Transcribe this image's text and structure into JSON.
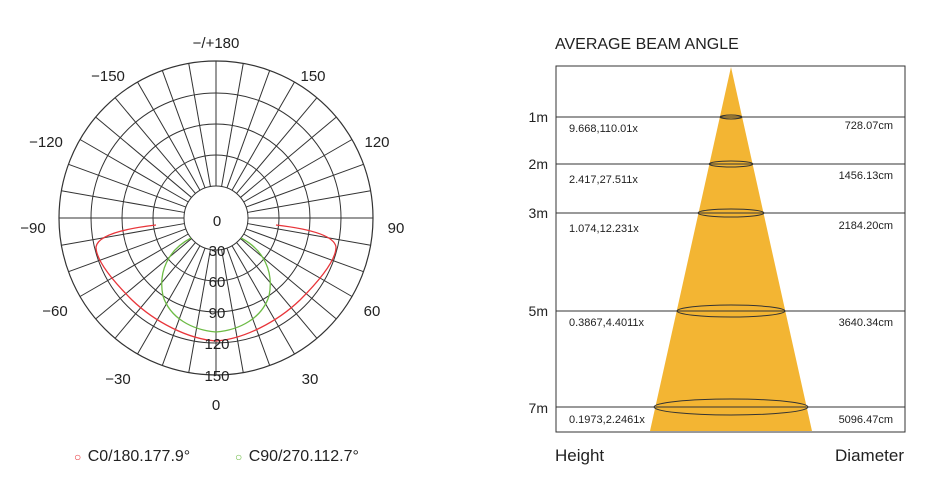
{
  "polar": {
    "top_label": "−/+180",
    "angle_labels": {
      "m150": "−150",
      "p150": "150",
      "m120": "−120",
      "p120": "120",
      "m90": "−90",
      "p90": "90",
      "m60": "−60",
      "p60": "60",
      "m30": "−30",
      "p30": "30",
      "bottom": "0"
    },
    "radial_labels": [
      "0",
      "30",
      "60",
      "90",
      "120",
      "150"
    ],
    "radial_max": 180,
    "curve_colors": {
      "c0": "#e8353a",
      "c90": "#6dbb45"
    },
    "legend": [
      {
        "marker": "○",
        "text": "C0/180.177.9°",
        "color": "#e8353a"
      },
      {
        "marker": "○",
        "text": "C90/270.112.7°",
        "color": "#6dbb45"
      }
    ]
  },
  "beam": {
    "title": "AVERAGE BEAM ANGLE",
    "cone_color": "#f3b533",
    "rows": [
      {
        "height": "1m",
        "left": "9.668,110.01x",
        "right": "728.07cm"
      },
      {
        "height": "2m",
        "left": "2.417,27.511x",
        "right": "1456.13cm"
      },
      {
        "height": "3m",
        "left": "1.074,12.231x",
        "right": "2184.20cm"
      },
      {
        "height": "5m",
        "left": "0.3867,4.4011x",
        "right": "3640.34cm"
      },
      {
        "height": "7m",
        "left": "0.1973,2.2461x",
        "right": "5096.47cm"
      }
    ],
    "footer_left": "Height",
    "footer_right": "Diameter"
  }
}
